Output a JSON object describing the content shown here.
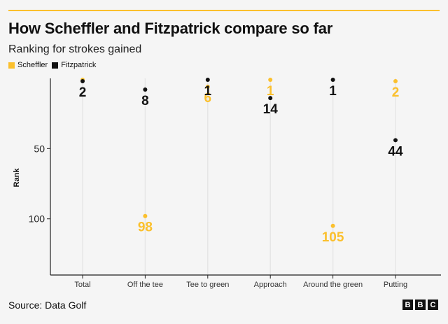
{
  "title": "How Scheffler and Fitzpatrick compare so far",
  "subtitle": "Ranking for strokes gained",
  "source": "Source: Data Golf",
  "logo": [
    "B",
    "B",
    "C"
  ],
  "colors": {
    "accent": "#fbc02d",
    "scheffler": "#fbc02d",
    "fitzpatrick": "#111111",
    "axis": "#222222",
    "gridline": "#e6e6e6"
  },
  "chart_data": {
    "type": "scatter",
    "title": "How Scheffler and Fitzpatrick compare so far",
    "subtitle": "Ranking for strokes gained",
    "xlabel": "",
    "ylabel": "Rank",
    "categories": [
      "Total",
      "Off the tee",
      "Tee to green",
      "Approach",
      "Around the green",
      "Putting"
    ],
    "ylim": [
      0,
      140
    ],
    "y_inverted": true,
    "yticks": [
      50,
      100
    ],
    "series": [
      {
        "name": "Scheffler",
        "color": "#fbc02d",
        "values": [
          1,
          98,
          6,
          1,
          105,
          2
        ],
        "labels": [
          "",
          "98",
          "6",
          "1",
          "105",
          "2"
        ]
      },
      {
        "name": "Fitzpatrick",
        "color": "#111111",
        "values": [
          2,
          8,
          1,
          14,
          1,
          44
        ],
        "labels": [
          "2",
          "8",
          "1",
          "14",
          "1",
          "44"
        ]
      }
    ],
    "legend_position": "top-left"
  }
}
